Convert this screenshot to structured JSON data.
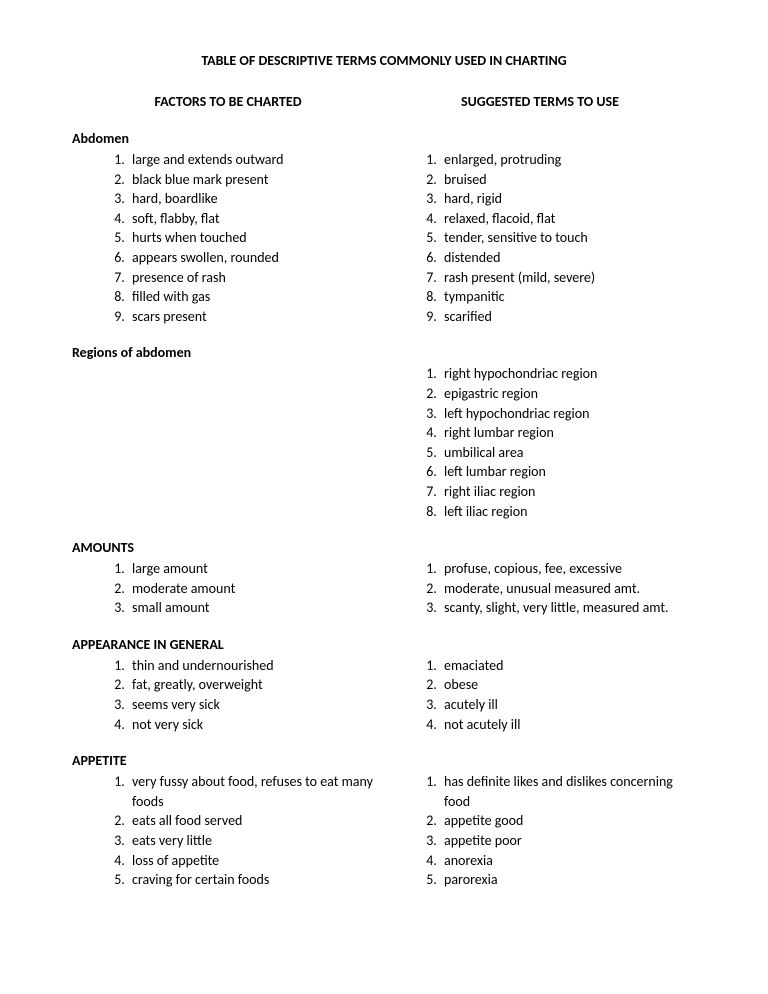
{
  "title": "TABLE OF DESCRIPTIVE TERMS COMMONLY USED IN CHARTING",
  "left_header": "FACTORS TO BE CHARTED",
  "right_header": "SUGGESTED TERMS TO USE",
  "sections": [
    {
      "heading": "Abdomen",
      "left": [
        "large and extends outward",
        "black blue mark present",
        "hard, boardlike",
        "soft, flabby, flat",
        "hurts when touched",
        "appears swollen, rounded",
        "presence of rash",
        "filled with gas",
        "scars present"
      ],
      "right": [
        "enlarged, protruding",
        "bruised",
        "hard, rigid",
        "relaxed, flacoid, flat",
        "tender, sensitive to touch",
        "distended",
        "rash present (mild, severe)",
        "tympanitic",
        "scarified"
      ]
    },
    {
      "heading": "Regions of abdomen",
      "left": [],
      "right": [
        "right hypochondriac region",
        "epigastric region",
        "left hypochondriac region",
        "right lumbar region",
        "umbilical area",
        "left lumbar region",
        "right iliac region",
        "left iliac region"
      ]
    },
    {
      "heading": "AMOUNTS",
      "left": [
        "large amount",
        "moderate amount",
        "small amount"
      ],
      "right": [
        "profuse, copious, fee, excessive",
        "moderate, unusual measured amt.",
        "scanty, slight, very little, measured amt."
      ]
    },
    {
      "heading": "APPEARANCE IN GENERAL",
      "left": [
        "thin and undernourished",
        "fat, greatly, overweight",
        "seems very sick",
        "not very sick"
      ],
      "right": [
        "emaciated",
        "obese",
        "acutely ill",
        "not acutely ill"
      ]
    },
    {
      "heading": "APPETITE",
      "left": [
        "very fussy about food, refuses to eat many foods",
        "eats all food served",
        "eats very little",
        "loss of appetite",
        "craving for certain foods"
      ],
      "right": [
        "has definite likes and dislikes concerning food",
        "appetite good",
        "appetite poor",
        "anorexia",
        "parorexia"
      ]
    }
  ]
}
